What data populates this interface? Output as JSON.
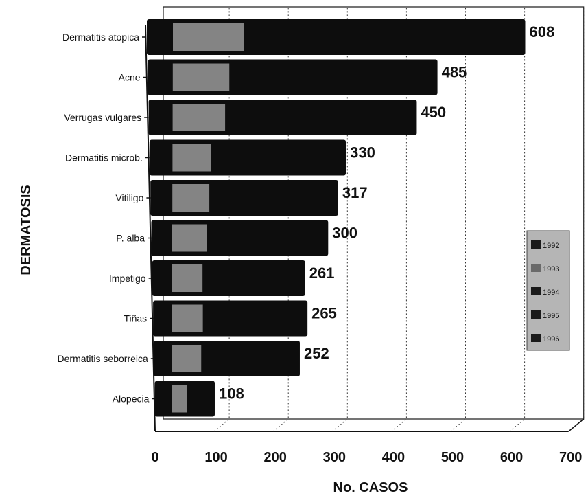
{
  "chart_data": {
    "type": "bar",
    "orientation": "horizontal",
    "stacked": true,
    "categories": [
      "Dermatitis atopica",
      "Acne",
      "Verrugas vulgares",
      "Dermatitis microb.",
      "Vitiligo",
      "P. alba",
      "Impetigo",
      "Tiñas",
      "Dermatitis seborreica",
      "Alopecia"
    ],
    "totals": [
      608,
      485,
      450,
      330,
      317,
      300,
      261,
      265,
      252,
      108
    ],
    "legend": [
      "1992",
      "1993",
      "1994",
      "1995",
      "1996"
    ],
    "xlabel": "No. CASOS",
    "ylabel": "DERMATOSIS",
    "xlim": [
      0,
      700
    ],
    "xticks": [
      0,
      100,
      200,
      300,
      400,
      500,
      600,
      700
    ],
    "grid": "vertical dotted",
    "legend_position": "right",
    "colors": {
      "dark": "#0d0d0d",
      "light": "#9a9a9a",
      "legend_bg": "#b5b5b5"
    }
  }
}
